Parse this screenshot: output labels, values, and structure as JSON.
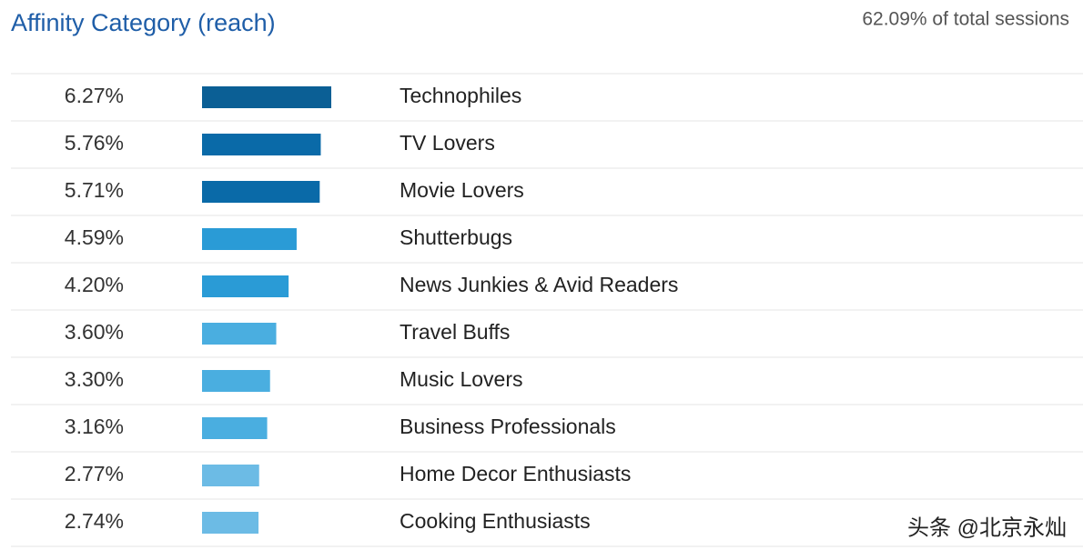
{
  "chart_data": {
    "type": "bar",
    "orientation": "horizontal",
    "title": "Affinity Category (reach)",
    "subtitle": "62.09% of total sessions",
    "categories": [
      "Technophiles",
      "TV Lovers",
      "Movie Lovers",
      "Shutterbugs",
      "News Junkies & Avid Readers",
      "Travel Buffs",
      "Music Lovers",
      "Business Professionals",
      "Home Decor Enthusiasts",
      "Cooking Enthusiasts"
    ],
    "values": [
      6.27,
      5.76,
      5.71,
      4.59,
      4.2,
      3.6,
      3.3,
      3.16,
      2.77,
      2.74
    ],
    "value_labels": [
      "6.27%",
      "5.76%",
      "5.71%",
      "4.59%",
      "4.20%",
      "3.60%",
      "3.30%",
      "3.16%",
      "2.77%",
      "2.74%"
    ],
    "colors": [
      "#0b5f95",
      "#0a6aa8",
      "#0a6aa8",
      "#2a9bd6",
      "#2a9bd6",
      "#4aaee0",
      "#4aaee0",
      "#4aaee0",
      "#6cbbe5",
      "#6cbbe5"
    ]
  },
  "watermark": "头条 @北京永灿"
}
